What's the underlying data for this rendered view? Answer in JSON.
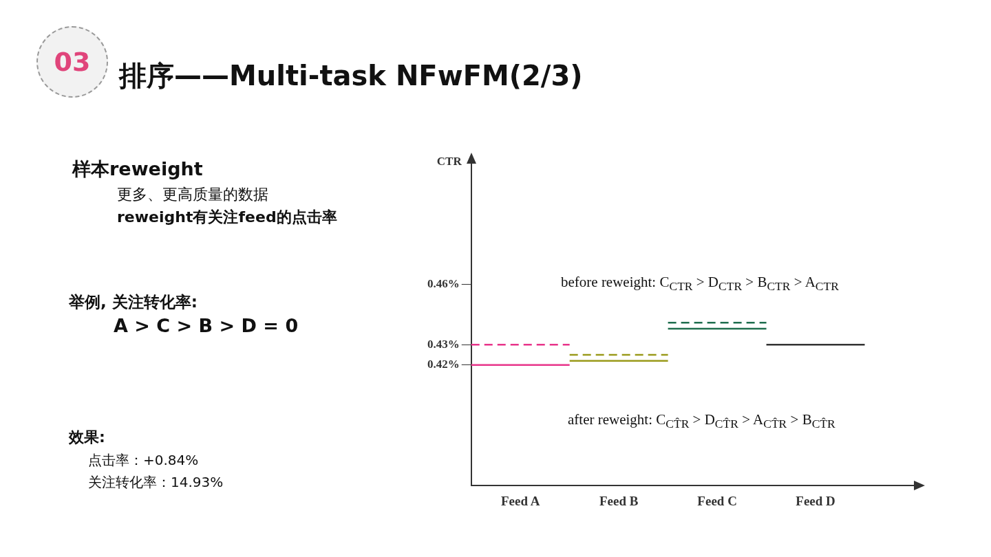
{
  "chart_data": {
    "type": "line",
    "title": "排序——Multi-task NFwFM(2/3)",
    "ylabel": "CTR",
    "categories": [
      null,
      "Feed A",
      null,
      "Feed B",
      null,
      "Feed C",
      null,
      "Feed D",
      null,
      null
    ],
    "series": [
      {
        "values": [
          0.42,
          0.42,
          0.42,
          null,
          null,
          null,
          null,
          null,
          null,
          null
        ],
        "color": "#e8348a",
        "line_style": "solid"
      },
      {
        "values": [
          0.43,
          0.43,
          0.43,
          null,
          null,
          null,
          null,
          null,
          null,
          null
        ],
        "color": "#e8348a",
        "line_style": "dashed"
      },
      {
        "values": [
          null,
          null,
          0.422,
          0.422,
          0.422,
          null,
          null,
          null,
          null,
          null
        ],
        "color": "#9a9a1a",
        "line_style": "solid"
      },
      {
        "values": [
          null,
          null,
          0.425,
          0.425,
          0.425,
          null,
          null,
          null,
          null,
          null
        ],
        "color": "#9a9a1a",
        "line_style": "dashed"
      },
      {
        "values": [
          null,
          null,
          null,
          null,
          0.438,
          0.438,
          0.438,
          null,
          null,
          null
        ],
        "color": "#1f6e4e",
        "line_style": "solid"
      },
      {
        "values": [
          null,
          null,
          null,
          null,
          0.441,
          0.441,
          0.441,
          null,
          null,
          null
        ],
        "color": "#1f6e4e",
        "line_style": "dashed"
      },
      {
        "values": [
          null,
          null,
          null,
          null,
          null,
          null,
          0.43,
          0.43,
          0.43,
          null
        ],
        "color": "#333333",
        "line_style": "solid"
      }
    ],
    "ylim": [
      0.36,
      0.52
    ],
    "yticks": [
      {
        "value": 0.42,
        "label": "0.42%"
      },
      {
        "value": 0.43,
        "label": "0.43%"
      },
      {
        "value": 0.46,
        "label": "0.46%"
      }
    ],
    "grid": false,
    "legend": false,
    "marker": "none",
    "annotations": [
      "03",
      "样本reweight",
      "更多、更高质量的数据",
      "reweight有关注feed的点击率",
      "举例, 关注转化率:",
      "A > C > B > D = 0",
      "效果:",
      "点击率：+0.84%",
      "关注转化率：14.93%",
      "before reweight: C$_{CTR}$ > D$_{CTR}$ > B$_{CTR}$ > A$_{CTR}$",
      "after reweight: C$_{CT̂R}$ > D$_{CT̂R}$ > A$_{CT̂R}$ > B$_{CT̂R}$"
    ]
  }
}
